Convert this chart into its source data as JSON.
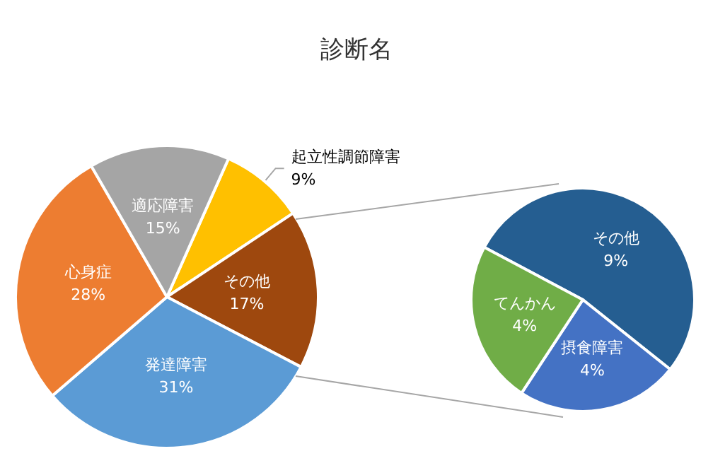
{
  "chart_data": [
    {
      "type": "pie",
      "title": "診断名",
      "categories": [
        "起立性調節障害",
        "その他",
        "発達障害",
        "心身症",
        "適応障害"
      ],
      "values": [
        9,
        17,
        31,
        28,
        15
      ],
      "value_labels": [
        "9%",
        "17%",
        "31%",
        "28%",
        "15%"
      ],
      "colors": [
        "#ffc000",
        "#9e480e",
        "#5b9bd5",
        "#ed7d31",
        "#a5a5a5"
      ],
      "legend": false
    },
    {
      "type": "pie",
      "categories": [
        "その他",
        "摂食障害",
        "てんかん"
      ],
      "values": [
        9,
        4,
        4
      ],
      "value_labels": [
        "9%",
        "4%",
        "4%"
      ],
      "colors": [
        "#255e91",
        "#4472c4",
        "#70ad47"
      ],
      "legend": false
    }
  ]
}
